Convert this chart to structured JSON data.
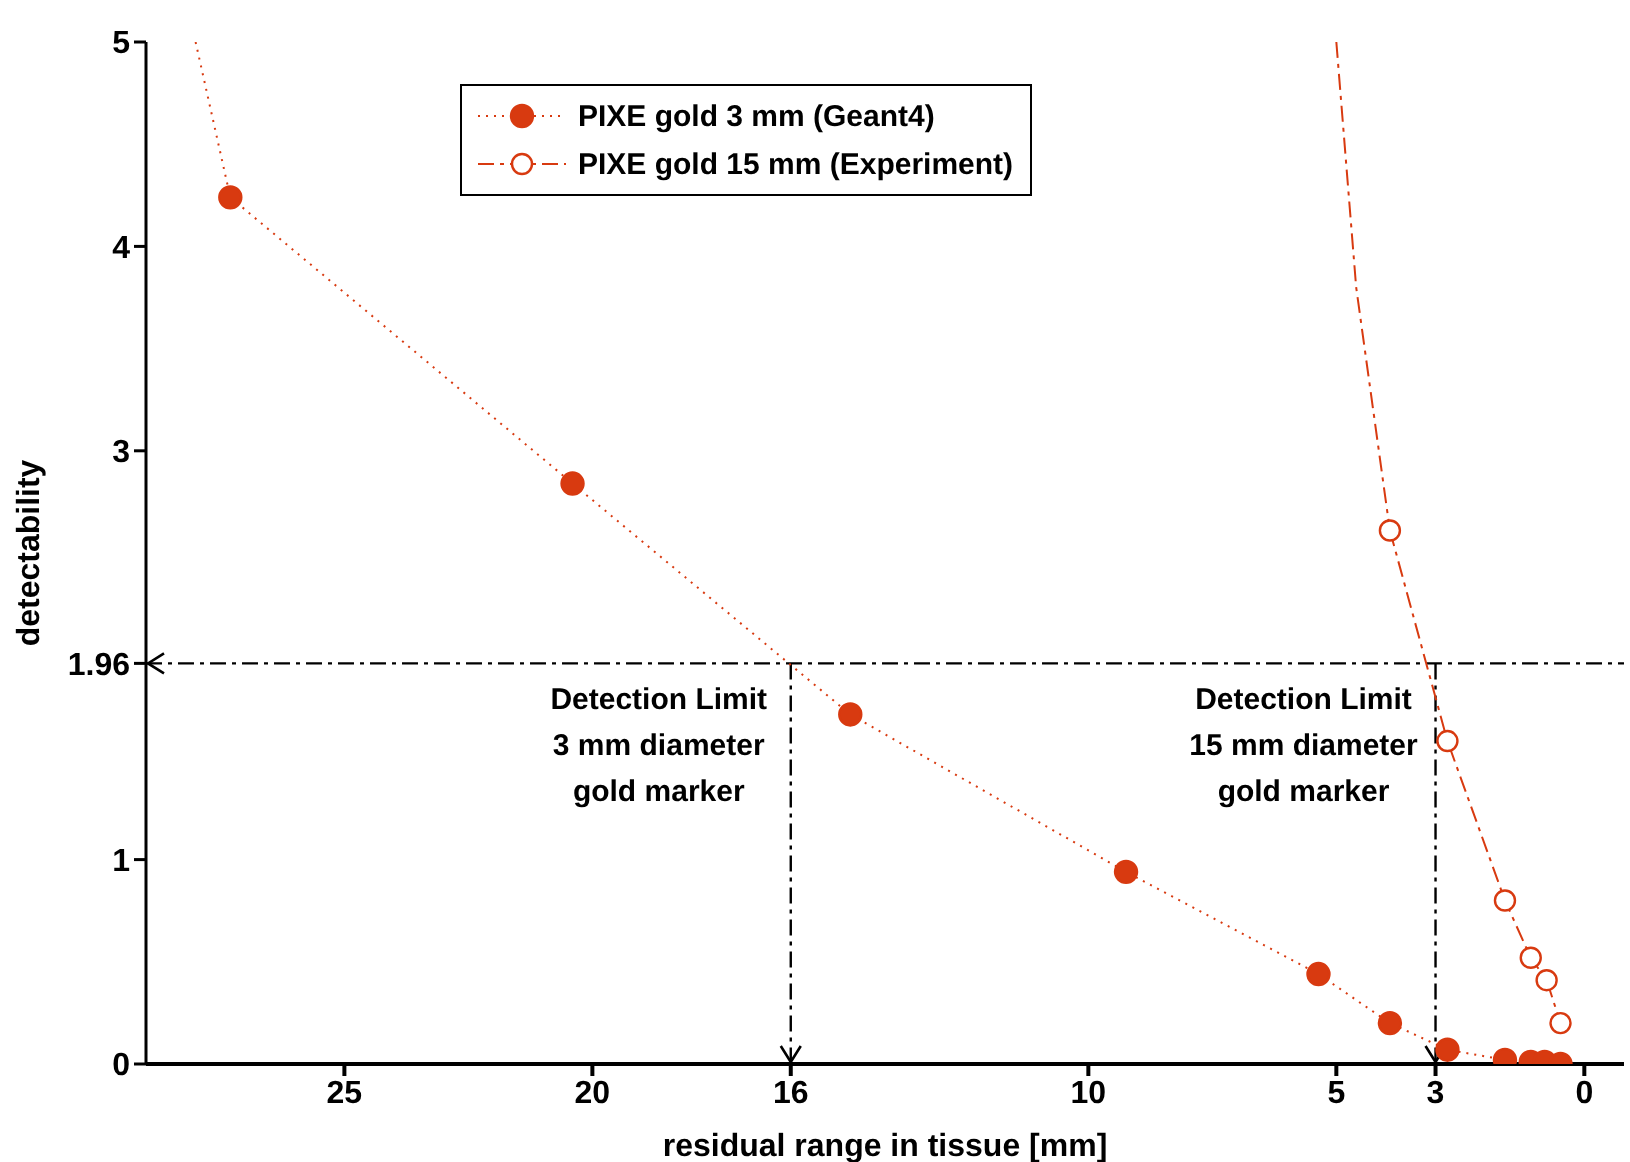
{
  "chart_data": {
    "type": "line",
    "xlabel": "residual range in tissue [mm]",
    "ylabel": "detectability",
    "xlim": [
      29,
      -0.8
    ],
    "ylim": [
      0,
      5
    ],
    "xticks": [
      25,
      20,
      16,
      10,
      5,
      3,
      0
    ],
    "yticks": [
      0,
      1,
      1.96,
      3,
      4,
      5
    ],
    "grid": false,
    "legend": "top",
    "marker": "circle",
    "series": [
      {
        "name": "PIXE gold 3 mm (Geant4)",
        "color": "#d83a10",
        "line_style": "dotted",
        "x": [
          27.3,
          20.4,
          14.8,
          9.24,
          5.36,
          3.92,
          2.76,
          1.6,
          1.08,
          0.8,
          0.48
        ],
        "values": [
          4.24,
          2.84,
          1.71,
          0.94,
          0.44,
          0.2,
          0.07,
          0.02,
          0.01,
          0.01,
          0
        ]
      },
      {
        "name": "PIXE gold 15 mm (Experiment)",
        "color": "#d83a10",
        "line_style": "dashed",
        "x": [
          3.92,
          2.76,
          1.6,
          1.08,
          0.76,
          0.48
        ],
        "values": [
          2.61,
          1.58,
          0.8,
          0.52,
          0.41,
          0.2
        ]
      },
      {
        "type": "line",
        "marker": "none",
        "color": "#d83a10",
        "line_style": "dotted",
        "x": [
          28.0,
          27.3
        ],
        "values": [
          5,
          4.24
        ]
      },
      {
        "type": "line",
        "marker": "none",
        "color": "#d83a10",
        "line_style": "dashed",
        "x": [
          5.0,
          4.6,
          3.92
        ],
        "values": [
          5,
          3.8,
          2.61
        ]
      }
    ],
    "ref_lines": [
      {
        "axis": "y",
        "value": 1.96,
        "line_style": "dashed",
        "color": "#000000"
      },
      {
        "axis": "x",
        "value": 16,
        "line_style": "dashed",
        "color": "#000000",
        "label": "Detection Limit\n3 mm diameter\ngold marker"
      },
      {
        "axis": "x",
        "value": 3,
        "line_style": "dashed",
        "color": "#000000",
        "label": "Detection Limit\n15 mm diameter\ngold marker"
      }
    ]
  }
}
